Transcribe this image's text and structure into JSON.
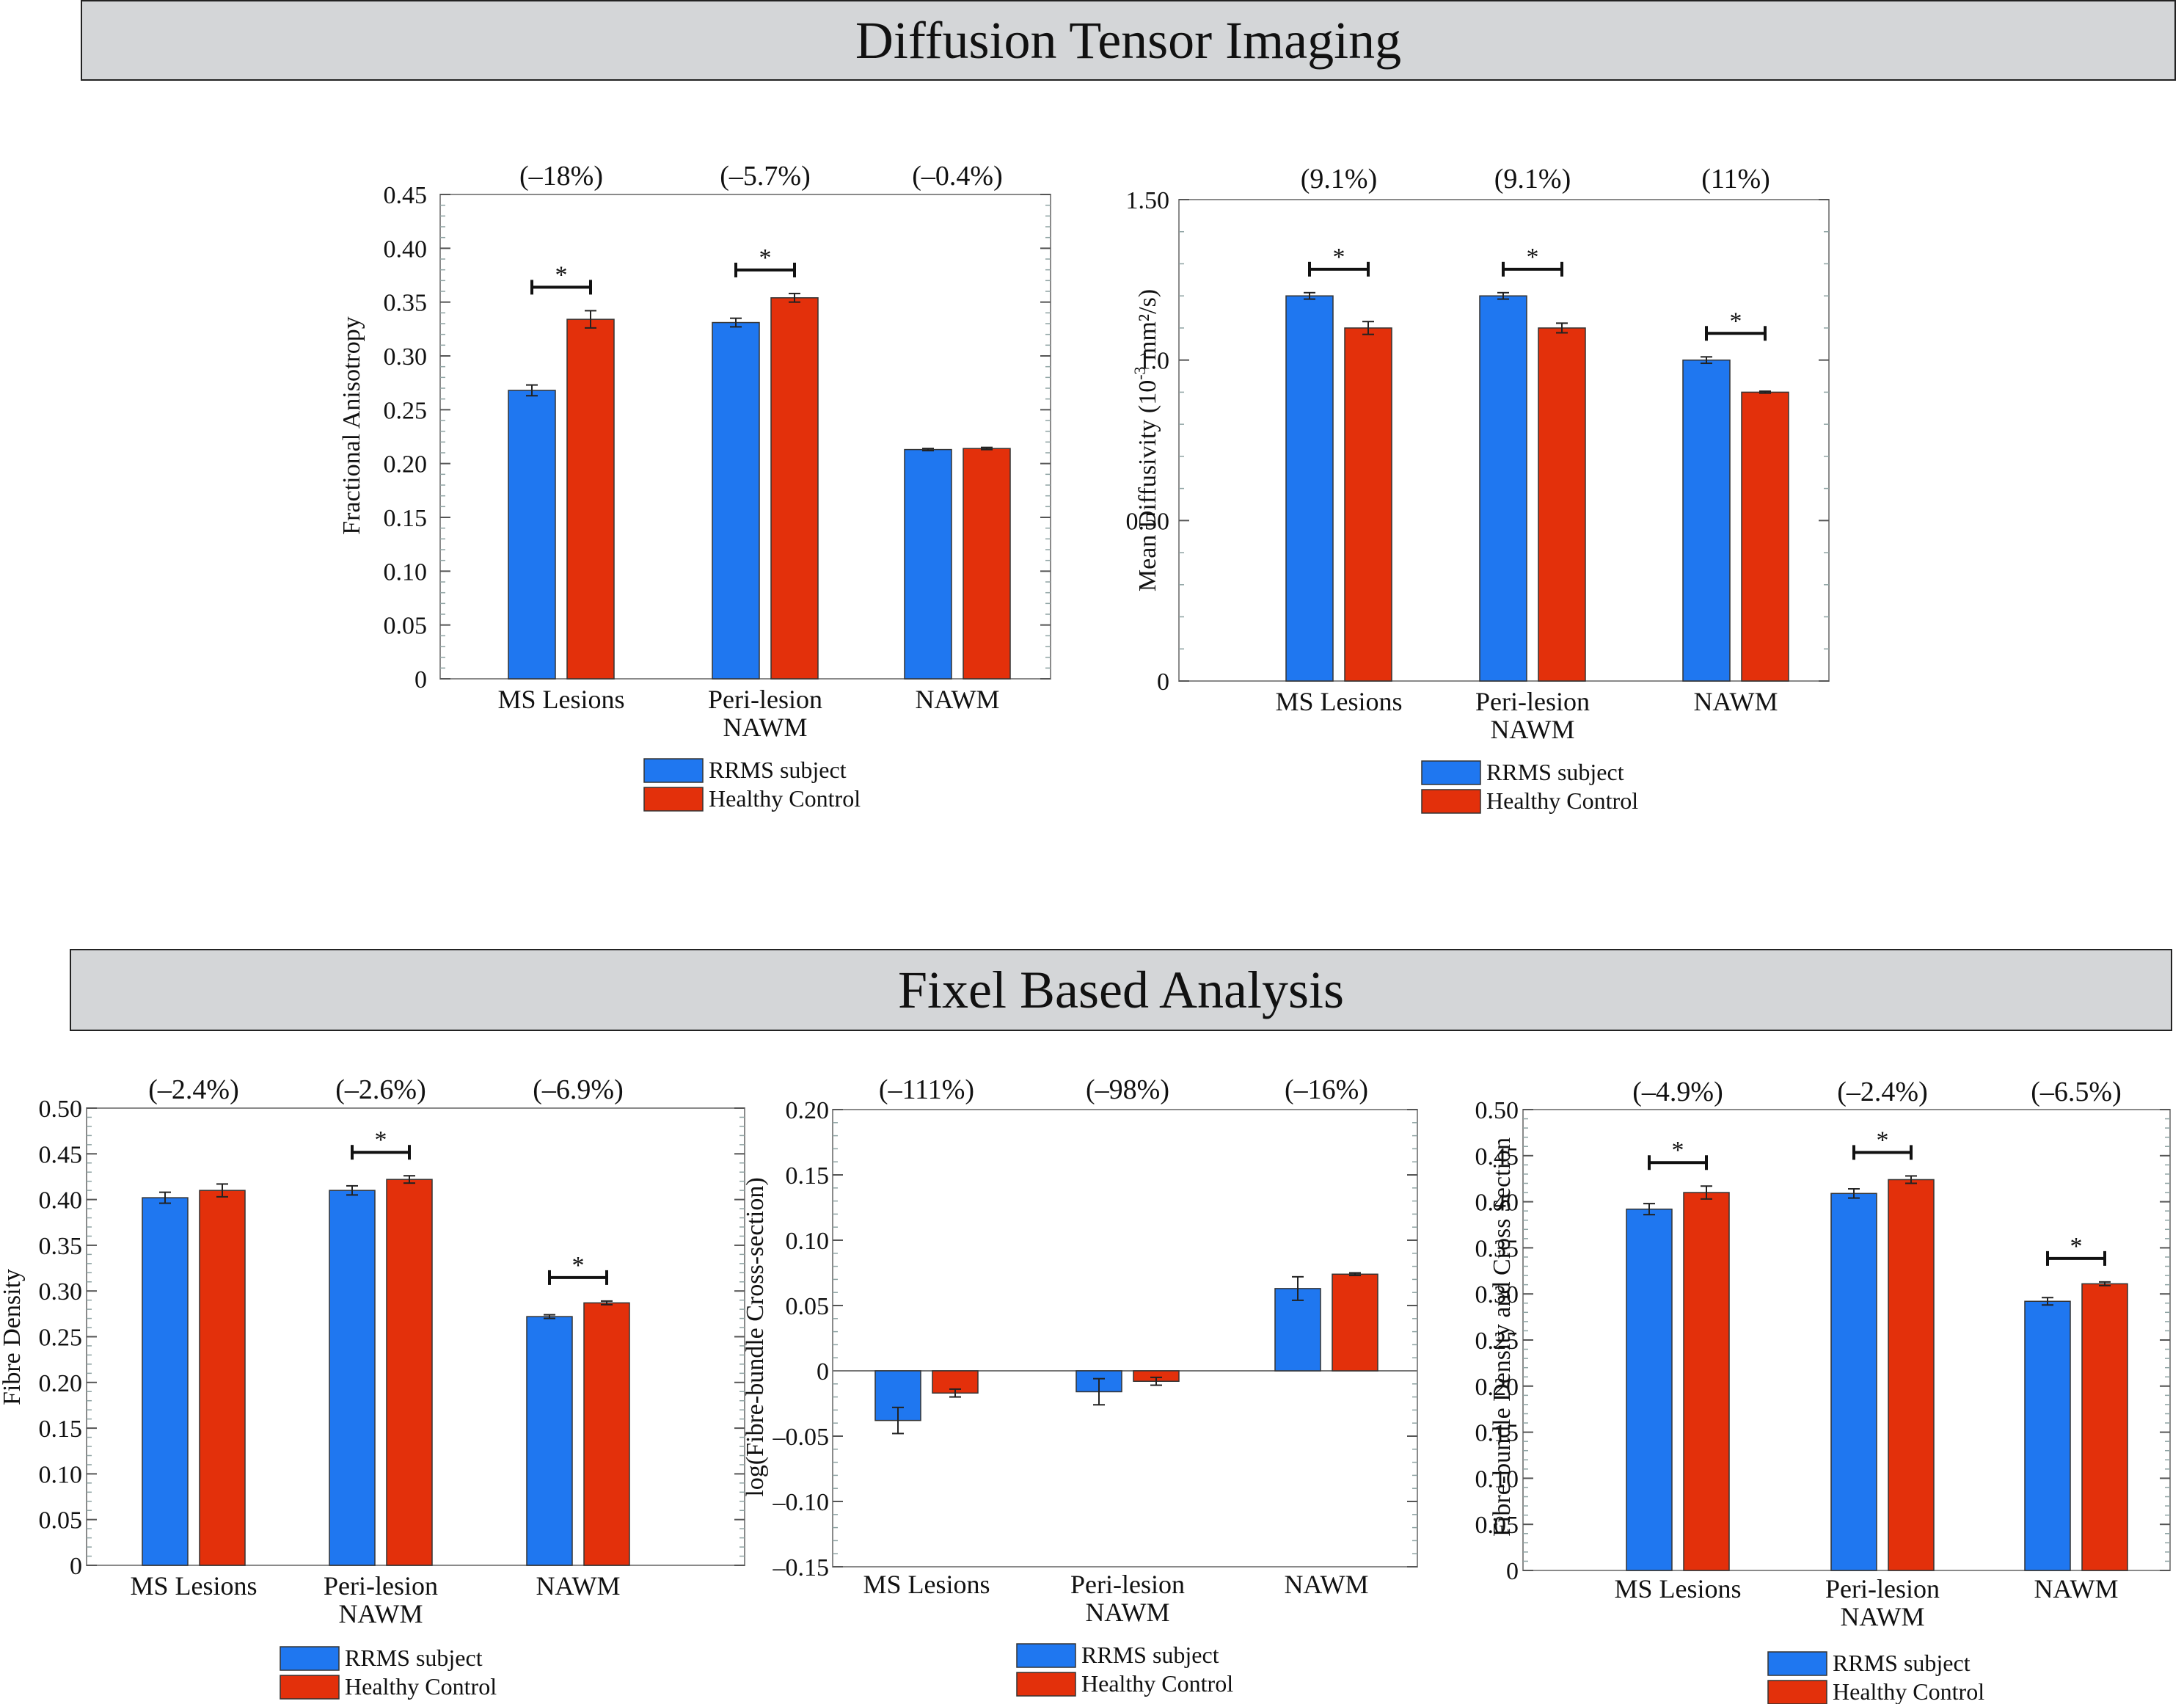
{
  "sections": {
    "dti_title": "Diffusion Tensor Imaging",
    "fba_title": "Fixel Based Analysis"
  },
  "colors": {
    "rrms": "#1f77f0",
    "control": "#e3300b",
    "header_bg": "#d4d6d8"
  },
  "legend": {
    "rrms": "RRMS subject",
    "control": "Healthy Control"
  },
  "chart_data": [
    {
      "type": "bar",
      "title": "",
      "ylabel": "Fractional Anisotropy",
      "ylabel_super": "",
      "ylabel_tail": "",
      "ylim": [
        0,
        0.45
      ],
      "yticks": [
        0,
        0.05,
        0.1,
        0.15,
        0.2,
        0.25,
        0.3,
        0.35,
        0.4,
        0.45
      ],
      "ytick_labels": [
        "0",
        "0.05",
        "0.10",
        "0.15",
        "0.20",
        "0.25",
        "0.30",
        "0.35",
        "0.40",
        "0.45"
      ],
      "categories": [
        [
          "MS Lesions"
        ],
        [
          "Peri-lesion",
          "NAWM"
        ],
        [
          "NAWM"
        ]
      ],
      "percent_labels": [
        "(–18%)",
        "(–5.7%)",
        "(–0.4%)"
      ],
      "significance": [
        true,
        true,
        false
      ],
      "series": [
        {
          "name": "RRMS subject",
          "values": [
            0.268,
            0.331,
            0.213
          ],
          "errors": [
            0.005,
            0.004,
            0.001
          ]
        },
        {
          "name": "Healthy Control",
          "values": [
            0.334,
            0.354,
            0.214
          ],
          "errors": [
            0.008,
            0.004,
            0.001
          ]
        }
      ]
    },
    {
      "type": "bar",
      "title": "",
      "ylabel": "Mean Diffusivity (10",
      "ylabel_super": "-3",
      "ylabel_tail": " mm²/s)",
      "ylim": [
        0,
        1.5
      ],
      "yticks": [
        0,
        0.5,
        1.0,
        1.5
      ],
      "ytick_labels": [
        "0",
        "0.50",
        "1.0",
        "1.50"
      ],
      "categories": [
        [
          "MS Lesions"
        ],
        [
          "Peri-lesion",
          "NAWM"
        ],
        [
          "NAWM"
        ]
      ],
      "percent_labels": [
        "(9.1%)",
        "(9.1%)",
        "(11%)"
      ],
      "significance": [
        true,
        true,
        true
      ],
      "series": [
        {
          "name": "RRMS subject",
          "values": [
            1.2,
            1.2,
            1.0
          ],
          "errors": [
            0.01,
            0.01,
            0.01
          ]
        },
        {
          "name": "Healthy Control",
          "values": [
            1.1,
            1.1,
            0.9
          ],
          "errors": [
            0.02,
            0.015,
            0.003
          ]
        }
      ]
    },
    {
      "type": "bar",
      "title": "",
      "ylabel": "Fibre Density",
      "ylabel_super": "",
      "ylabel_tail": "",
      "ylim": [
        0,
        0.5
      ],
      "yticks": [
        0,
        0.05,
        0.1,
        0.15,
        0.2,
        0.25,
        0.3,
        0.35,
        0.4,
        0.45,
        0.5
      ],
      "ytick_labels": [
        "0",
        "0.05",
        "0.10",
        "0.15",
        "0.20",
        "0.25",
        "0.30",
        "0.35",
        "0.40",
        "0.45",
        "0.50"
      ],
      "categories": [
        [
          "MS Lesions"
        ],
        [
          "Peri-lesion",
          "NAWM"
        ],
        [
          "NAWM"
        ]
      ],
      "percent_labels": [
        "(–2.4%)",
        "(–2.6%)",
        "(–6.9%)"
      ],
      "significance": [
        false,
        true,
        true
      ],
      "series": [
        {
          "name": "RRMS subject",
          "values": [
            0.402,
            0.41,
            0.272
          ],
          "errors": [
            0.006,
            0.005,
            0.002
          ]
        },
        {
          "name": "Healthy Control",
          "values": [
            0.41,
            0.422,
            0.287
          ],
          "errors": [
            0.007,
            0.004,
            0.002
          ]
        }
      ]
    },
    {
      "type": "bar",
      "title": "",
      "ylabel": "log(Fibre-bundle Cross-section)",
      "ylabel_super": "",
      "ylabel_tail": "",
      "ylim": [
        -0.15,
        0.2
      ],
      "yticks": [
        -0.15,
        -0.1,
        -0.05,
        0,
        0.05,
        0.1,
        0.15,
        0.2
      ],
      "ytick_labels": [
        "–0.15",
        "–0.10",
        "–0.05",
        "0",
        "0.05",
        "0.10",
        "0.15",
        "0.20"
      ],
      "categories": [
        [
          "MS Lesions"
        ],
        [
          "Peri-lesion",
          "NAWM"
        ],
        [
          "NAWM"
        ]
      ],
      "percent_labels": [
        "(–111%)",
        "(–98%)",
        "(–16%)"
      ],
      "significance": [
        false,
        false,
        false
      ],
      "series": [
        {
          "name": "RRMS subject",
          "values": [
            -0.038,
            -0.016,
            0.063
          ],
          "errors": [
            0.01,
            0.01,
            0.009
          ]
        },
        {
          "name": "Healthy Control",
          "values": [
            -0.017,
            -0.008,
            0.074
          ],
          "errors": [
            0.003,
            0.003,
            0.001
          ]
        }
      ]
    },
    {
      "type": "bar",
      "title": "",
      "ylabel": "Fibre-bundle Density and Cross Section",
      "ylabel_super": "",
      "ylabel_tail": "",
      "ylim": [
        0,
        0.5
      ],
      "yticks": [
        0,
        0.05,
        0.1,
        0.15,
        0.2,
        0.25,
        0.3,
        0.35,
        0.4,
        0.45,
        0.5
      ],
      "ytick_labels": [
        "0",
        "0.05",
        "0.10",
        "0.15",
        "0.20",
        "0.25",
        "0.30",
        "0.35",
        "0.40",
        "0.45",
        "0.50"
      ],
      "categories": [
        [
          "MS Lesions"
        ],
        [
          "Peri-lesion",
          "NAWM"
        ],
        [
          "NAWM"
        ]
      ],
      "percent_labels": [
        "(–4.9%)",
        "(–2.4%)",
        "(–6.5%)"
      ],
      "significance": [
        true,
        true,
        true
      ],
      "series": [
        {
          "name": "RRMS subject",
          "values": [
            0.392,
            0.409,
            0.292
          ],
          "errors": [
            0.006,
            0.005,
            0.004
          ]
        },
        {
          "name": "Healthy Control",
          "values": [
            0.41,
            0.424,
            0.311
          ],
          "errors": [
            0.007,
            0.004,
            0.002
          ]
        }
      ]
    }
  ]
}
